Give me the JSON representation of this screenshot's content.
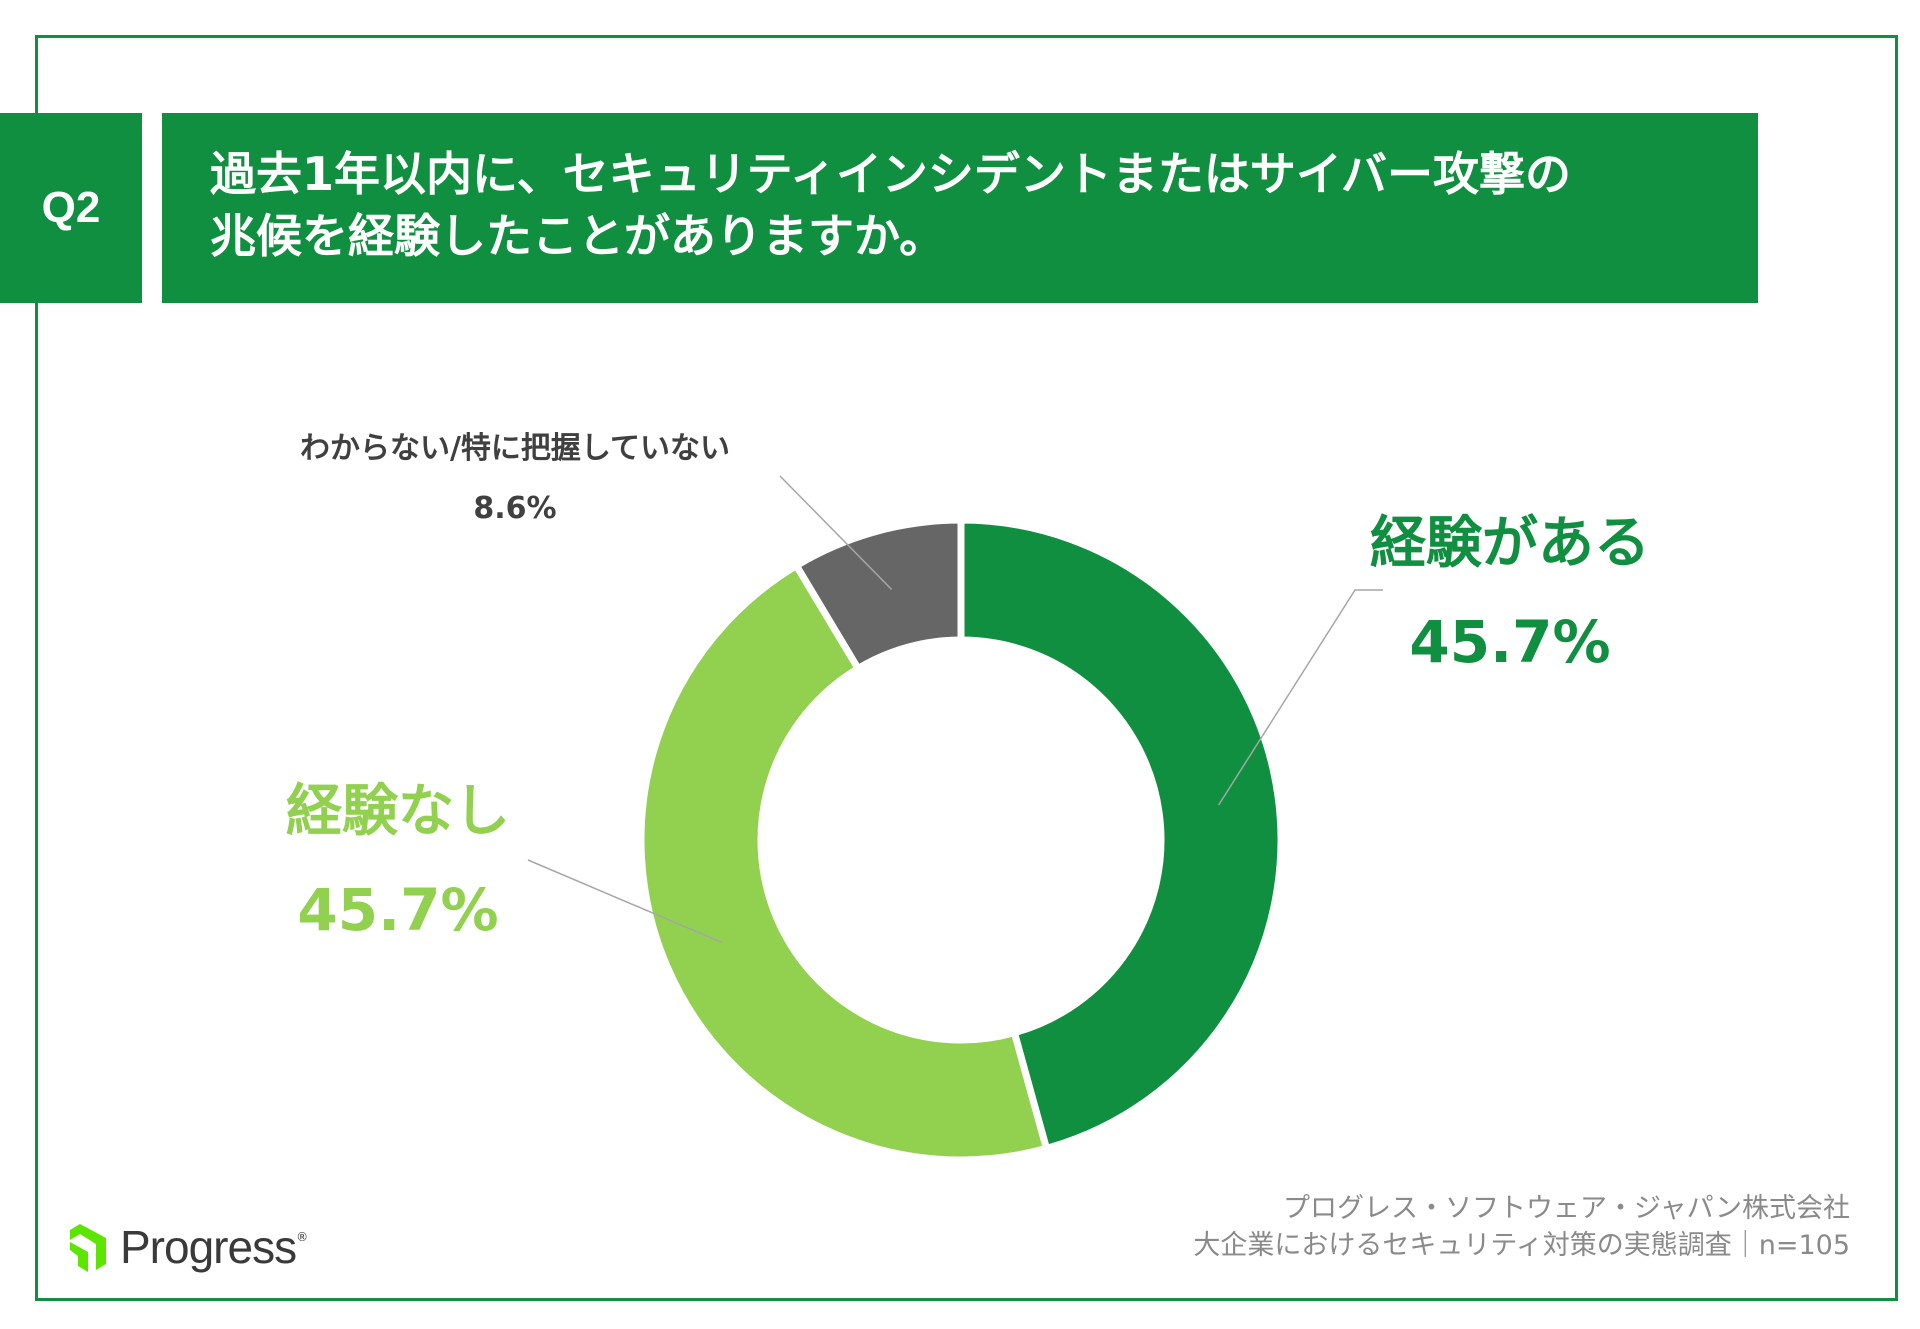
{
  "question": {
    "badge": "Q2",
    "line1": "過去1年以内に、セキュリティインシデントまたはサイバー攻撃の",
    "line2": "兆候を経験したことがありますか。"
  },
  "chart_data": {
    "type": "pie",
    "donut": true,
    "slices": [
      {
        "label": "経験がある",
        "value": 45.7,
        "value_label": "45.7%",
        "color": "#0f8f3f"
      },
      {
        "label": "経験なし",
        "value": 45.7,
        "value_label": "45.7%",
        "color": "#92d050"
      },
      {
        "label": "わからない/特に把握していない",
        "value": 8.6,
        "value_label": "8.6%",
        "color": "#666666"
      }
    ]
  },
  "footer": {
    "line1": "プログレス・ソフトウェア・ジャパン株式会社",
    "line2": "大企業におけるセキュリティ対策の実態調査｜n=105"
  },
  "logo": {
    "text": "Progress",
    "reg": "®",
    "icon": "progress-logo-icon",
    "color": "#5ce500"
  }
}
